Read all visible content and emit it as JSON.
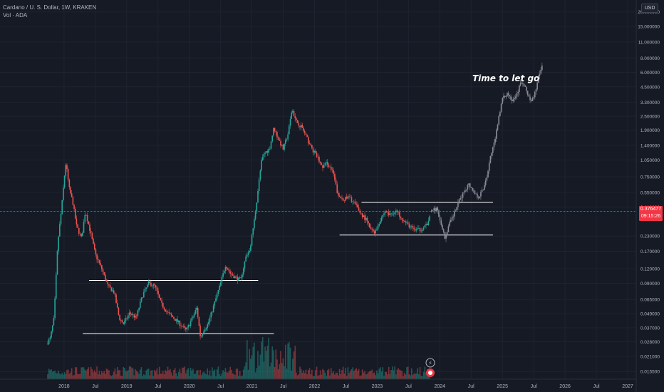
{
  "legend": {
    "symbol_line": "Cardano / U. S. Dollar, 1W, KRAKEN",
    "volume_line": "Vol · ADA"
  },
  "currency_label": "USD",
  "last_price": {
    "value": "0.376477",
    "countdown": "09:15:26"
  },
  "annotation": "Time to let go",
  "colors": {
    "background": "#161a25",
    "up": "#26a69a",
    "down": "#ef5350",
    "projection": "#8a8d96",
    "grid": "#1f2330",
    "level_line": "#ffffff",
    "price_line": "#f23645"
  },
  "chart_data": {
    "type": "candlestick",
    "y_scale": "log",
    "y_ticks": [
      0.0155,
      0.021,
      0.028,
      0.037,
      0.049,
      0.065,
      0.09,
      0.12,
      0.17,
      0.23,
      0.41,
      0.55,
      0.75,
      1.05,
      1.4,
      1.9,
      2.5,
      3.3,
      4.5,
      6.0,
      8.0,
      11.0,
      15.0,
      20.0
    ],
    "y_tick_labels": [
      "0.015500",
      "0.021000",
      "0.028000",
      "0.037000",
      "0.049000",
      "0.065000",
      "0.090000",
      "0.120000",
      "0.170000",
      "0.230000",
      "0.410000",
      "0.550000",
      "0.750000",
      "1.050000",
      "1.400000",
      "1.900000",
      "2.500000",
      "3.300000",
      "4.500000",
      "6.000000",
      "8.000000",
      "11.000000",
      "15.000000",
      "20.000000"
    ],
    "x_ticks": [
      {
        "label": "2018",
        "t": 2018.0
      },
      {
        "label": "Jul",
        "t": 2018.5
      },
      {
        "label": "2019",
        "t": 2019.0
      },
      {
        "label": "Jul",
        "t": 2019.5
      },
      {
        "label": "2020",
        "t": 2020.0
      },
      {
        "label": "Jul",
        "t": 2020.5
      },
      {
        "label": "2021",
        "t": 2021.0
      },
      {
        "label": "Jul",
        "t": 2021.5
      },
      {
        "label": "2022",
        "t": 2022.0
      },
      {
        "label": "Jul",
        "t": 2022.5
      },
      {
        "label": "2023",
        "t": 2023.0
      },
      {
        "label": "Jul",
        "t": 2023.5
      },
      {
        "label": "2024",
        "t": 2024.0
      },
      {
        "label": "Jul",
        "t": 2024.5
      },
      {
        "label": "2025",
        "t": 2025.0
      },
      {
        "label": "Jul",
        "t": 2025.5
      },
      {
        "label": "2026",
        "t": 2026.0
      },
      {
        "label": "Jul",
        "t": 2026.5
      },
      {
        "label": "2027",
        "t": 2027.0
      }
    ],
    "price_path": [
      [
        2017.72,
        0.027
      ],
      [
        2017.78,
        0.03
      ],
      [
        2017.84,
        0.045
      ],
      [
        2017.9,
        0.2
      ],
      [
        2017.96,
        0.4
      ],
      [
        2018.0,
        0.7
      ],
      [
        2018.03,
        1.0
      ],
      [
        2018.08,
        0.6
      ],
      [
        2018.14,
        0.45
      ],
      [
        2018.2,
        0.28
      ],
      [
        2018.28,
        0.22
      ],
      [
        2018.34,
        0.38
      ],
      [
        2018.42,
        0.25
      ],
      [
        2018.5,
        0.16
      ],
      [
        2018.6,
        0.12
      ],
      [
        2018.7,
        0.085
      ],
      [
        2018.8,
        0.075
      ],
      [
        2018.88,
        0.045
      ],
      [
        2018.95,
        0.04
      ],
      [
        2019.05,
        0.05
      ],
      [
        2019.15,
        0.045
      ],
      [
        2019.25,
        0.07
      ],
      [
        2019.35,
        0.09
      ],
      [
        2019.45,
        0.085
      ],
      [
        2019.55,
        0.06
      ],
      [
        2019.65,
        0.05
      ],
      [
        2019.75,
        0.045
      ],
      [
        2019.85,
        0.04
      ],
      [
        2019.95,
        0.035
      ],
      [
        2020.05,
        0.045
      ],
      [
        2020.12,
        0.055
      ],
      [
        2020.18,
        0.03
      ],
      [
        2020.22,
        0.035
      ],
      [
        2020.3,
        0.04
      ],
      [
        2020.4,
        0.06
      ],
      [
        2020.5,
        0.09
      ],
      [
        2020.58,
        0.13
      ],
      [
        2020.65,
        0.11
      ],
      [
        2020.75,
        0.1
      ],
      [
        2020.82,
        0.095
      ],
      [
        2020.9,
        0.15
      ],
      [
        2020.97,
        0.18
      ],
      [
        2021.05,
        0.35
      ],
      [
        2021.1,
        0.6
      ],
      [
        2021.15,
        1.0
      ],
      [
        2021.2,
        1.2
      ],
      [
        2021.28,
        1.3
      ],
      [
        2021.35,
        2.0
      ],
      [
        2021.42,
        1.6
      ],
      [
        2021.5,
        1.3
      ],
      [
        2021.58,
        1.8
      ],
      [
        2021.64,
        2.9
      ],
      [
        2021.7,
        2.3
      ],
      [
        2021.8,
        2.0
      ],
      [
        2021.88,
        1.6
      ],
      [
        2021.96,
        1.3
      ],
      [
        2022.05,
        1.1
      ],
      [
        2022.12,
        0.9
      ],
      [
        2022.2,
        1.0
      ],
      [
        2022.3,
        0.8
      ],
      [
        2022.38,
        0.5
      ],
      [
        2022.48,
        0.48
      ],
      [
        2022.55,
        0.5
      ],
      [
        2022.64,
        0.44
      ],
      [
        2022.74,
        0.36
      ],
      [
        2022.82,
        0.32
      ],
      [
        2022.9,
        0.26
      ],
      [
        2022.97,
        0.25
      ],
      [
        2023.05,
        0.32
      ],
      [
        2023.13,
        0.38
      ],
      [
        2023.2,
        0.35
      ],
      [
        2023.3,
        0.38
      ],
      [
        2023.38,
        0.34
      ],
      [
        2023.45,
        0.3
      ],
      [
        2023.52,
        0.28
      ],
      [
        2023.6,
        0.26
      ],
      [
        2023.68,
        0.26
      ],
      [
        2023.76,
        0.28
      ],
      [
        2023.82,
        0.3
      ],
      [
        2023.85,
        0.37
      ]
    ],
    "projection_path": [
      [
        2023.85,
        0.37
      ],
      [
        2023.95,
        0.4
      ],
      [
        2024.02,
        0.3
      ],
      [
        2024.08,
        0.22
      ],
      [
        2024.14,
        0.28
      ],
      [
        2024.22,
        0.35
      ],
      [
        2024.3,
        0.45
      ],
      [
        2024.38,
        0.55
      ],
      [
        2024.46,
        0.65
      ],
      [
        2024.55,
        0.55
      ],
      [
        2024.62,
        0.5
      ],
      [
        2024.7,
        0.6
      ],
      [
        2024.76,
        0.8
      ],
      [
        2024.82,
        1.2
      ],
      [
        2024.88,
        1.5
      ],
      [
        2024.94,
        2.5
      ],
      [
        2025.0,
        3.5
      ],
      [
        2025.08,
        4.0
      ],
      [
        2025.15,
        3.5
      ],
      [
        2025.22,
        3.8
      ],
      [
        2025.3,
        5.0
      ],
      [
        2025.38,
        4.2
      ],
      [
        2025.46,
        3.3
      ],
      [
        2025.52,
        4.0
      ],
      [
        2025.58,
        5.5
      ],
      [
        2025.64,
        7.0
      ]
    ],
    "level_lines": [
      {
        "y": 0.095,
        "t1": 2018.4,
        "t2": 2021.1
      },
      {
        "y": 0.033,
        "t1": 2018.3,
        "t2": 2021.35
      },
      {
        "y": 0.235,
        "t1": 2022.4,
        "t2": 2024.85
      },
      {
        "y": 0.45,
        "t1": 2022.75,
        "t2": 2024.85
      }
    ],
    "current_price": 0.376477
  }
}
